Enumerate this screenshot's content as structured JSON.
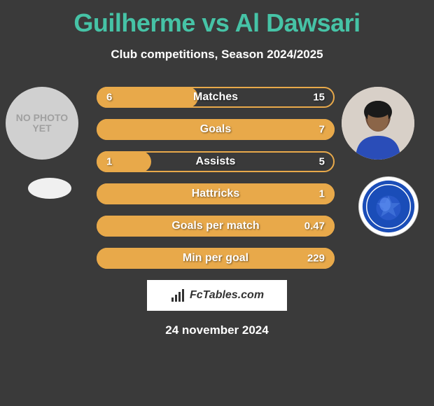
{
  "title": "Guilherme vs Al Dawsari",
  "subtitle": "Club competitions, Season 2024/2025",
  "date": "24 november 2024",
  "watermark": "FcTables.com",
  "noPhotoText": "NO PHOTO YET",
  "colors": {
    "title": "#46c3a6",
    "background": "#3a3a3a",
    "barBorder": "#e8a94a",
    "barFill": "#e8a94a",
    "text": "#ffffff"
  },
  "player_left": {
    "name": "Guilherme",
    "has_photo": false
  },
  "player_right": {
    "name": "Al Dawsari",
    "has_photo": true,
    "skin_color": "#8b6548",
    "shirt_color": "#2a4db8",
    "bg_color": "#d8d0c8"
  },
  "club_right": {
    "name": "Al Hilal",
    "primary_color": "#1a4db8",
    "secondary_color": "#ffffff"
  },
  "stats": [
    {
      "label": "Matches",
      "left_value": "6",
      "right_value": "15",
      "fill_side": "left",
      "fill_percent": 42
    },
    {
      "label": "Goals",
      "left_value": "",
      "right_value": "7",
      "fill_side": "left",
      "fill_percent": 100
    },
    {
      "label": "Assists",
      "left_value": "1",
      "right_value": "5",
      "fill_side": "left",
      "fill_percent": 22
    },
    {
      "label": "Hattricks",
      "left_value": "",
      "right_value": "1",
      "fill_side": "left",
      "fill_percent": 100
    },
    {
      "label": "Goals per match",
      "left_value": "",
      "right_value": "0.47",
      "fill_side": "left",
      "fill_percent": 100
    },
    {
      "label": "Min per goal",
      "left_value": "",
      "right_value": "229",
      "fill_side": "left",
      "fill_percent": 100
    }
  ]
}
